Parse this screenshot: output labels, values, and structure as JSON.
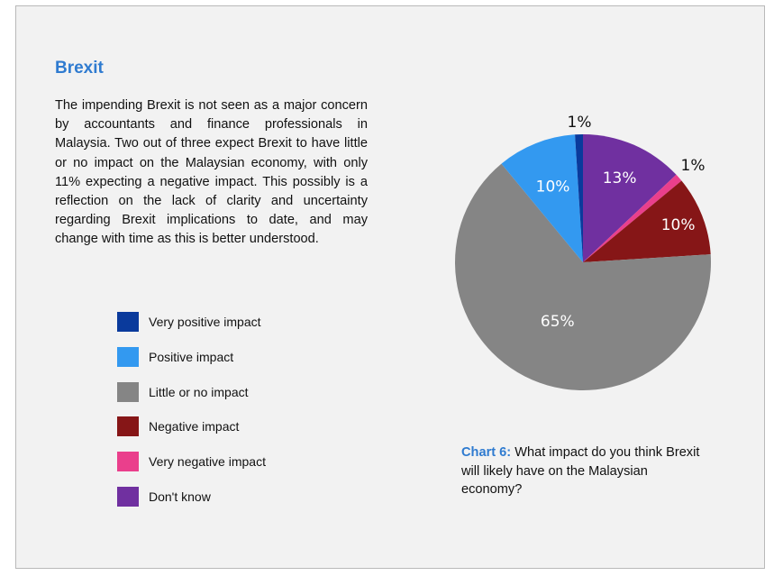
{
  "heading": "Brexit",
  "body": "The impending Brexit is not seen as a major concern by accountants and finance professionals in Malaysia. Two out of three expect Brexit to have little or no impact on the Malaysian economy, with only 11% expecting a negative impact.  This possibly is a reflection on the lack of clarity and uncertainty regarding Brexit implications to date, and may change with time as this is better understood.",
  "caption": {
    "label": "Chart 6:",
    "text": " What impact do you think Brexit will likely have on the Malaysian economy?"
  },
  "chart_data": {
    "type": "pie",
    "unit": "%",
    "legend_position": "left",
    "categories": [
      "Very positive impact",
      "Positive impact",
      "Little or no impact",
      "Negative impact",
      "Very negative impact",
      "Don't know"
    ],
    "values": [
      1,
      10,
      65,
      10,
      1,
      13
    ],
    "data_labels": [
      "1%",
      "10%",
      "65%",
      "10%",
      "1%",
      "13%"
    ],
    "colors": [
      "#0a3a9c",
      "#3399f0",
      "#858585",
      "#861617",
      "#ea3f8c",
      "#7030a0"
    ]
  }
}
